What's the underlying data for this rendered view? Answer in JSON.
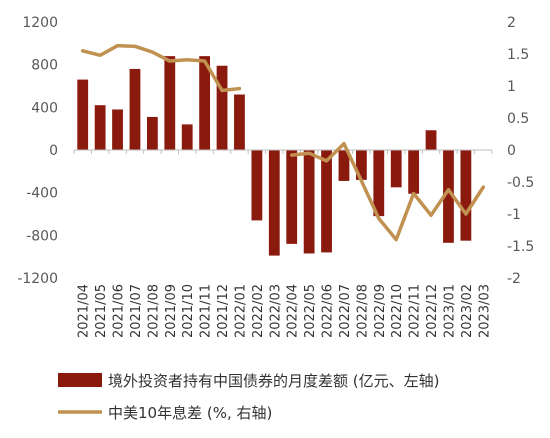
{
  "chart_data": {
    "type": "bar",
    "categories": [
      "2021/04",
      "2021/05",
      "2021/06",
      "2021/07",
      "2021/08",
      "2021/09",
      "2021/10",
      "2021/11",
      "2021/12",
      "2022/01",
      "2022/02",
      "2022/03",
      "2022/04",
      "2022/05",
      "2022/06",
      "2022/07",
      "2022/08",
      "2022/09",
      "2022/10",
      "2022/11",
      "2022/12",
      "2023/01",
      "2023/02",
      "2023/03"
    ],
    "series": [
      {
        "name": "境外投资者持有中国债券的月度差额 (亿元、左轴)",
        "type": "bar",
        "axis": "left",
        "color": "#8B1A0E",
        "values": [
          660,
          420,
          380,
          760,
          310,
          880,
          240,
          880,
          790,
          520,
          -660,
          -990,
          -880,
          -970,
          -960,
          -290,
          -280,
          -620,
          -350,
          -410,
          185,
          -870,
          -850,
          null
        ]
      },
      {
        "name": "中美10年息差 (%, 右轴)",
        "type": "line",
        "axis": "right",
        "color": "#C09150",
        "values": [
          1.55,
          1.48,
          1.63,
          1.62,
          1.53,
          1.39,
          1.41,
          1.39,
          0.93,
          0.96,
          null,
          null,
          -0.08,
          -0.05,
          -0.17,
          0.1,
          -0.48,
          -1.07,
          -1.4,
          -0.68,
          -1.02,
          -0.62,
          -1.0,
          -0.58
        ]
      }
    ],
    "y_left": {
      "min": -1200,
      "max": 1200,
      "ticks": [
        -1200,
        -800,
        -400,
        0,
        400,
        800,
        1200
      ]
    },
    "y_right": {
      "min": -2,
      "max": 2,
      "ticks": [
        -2,
        -1.5,
        -1,
        -0.5,
        0,
        0.5,
        1,
        1.5,
        2
      ]
    },
    "grid": false,
    "legend_position": "bottom"
  },
  "legend": {
    "bar_label": "境外投资者持有中国债券的月度差额 (亿元、左轴)",
    "line_label": "中美10年息差 (%, 右轴)"
  }
}
